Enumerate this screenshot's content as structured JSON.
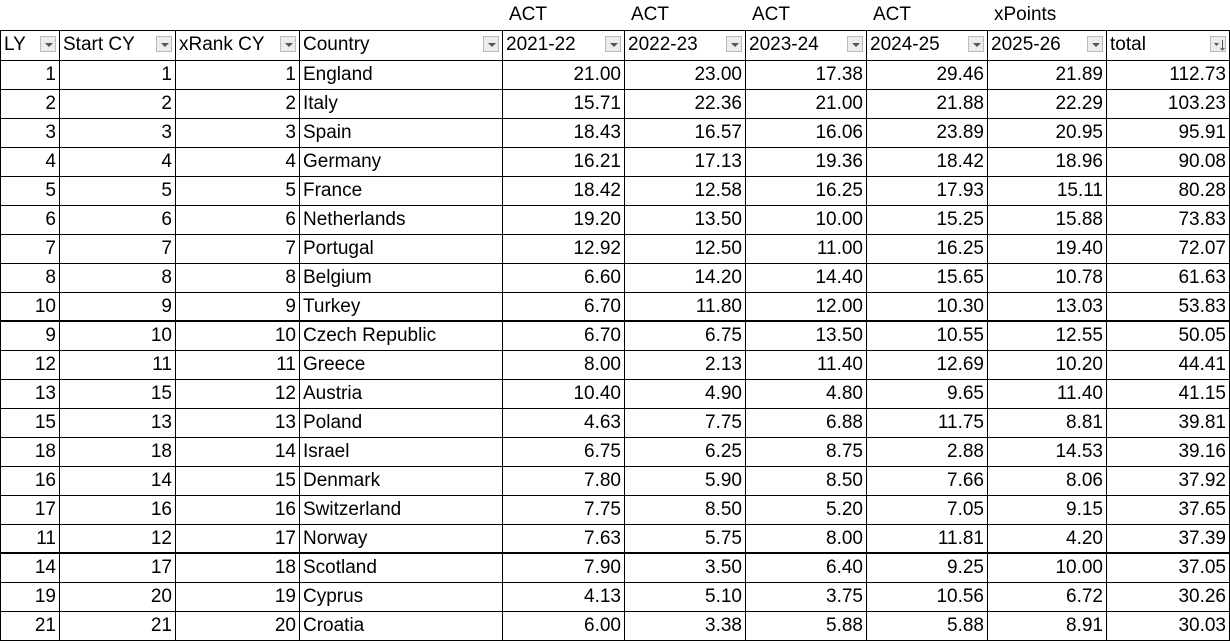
{
  "group_labels": [
    "ACT",
    "ACT",
    "ACT",
    "ACT",
    "xPoints"
  ],
  "columns": [
    "LY",
    "Start CY",
    "xRank CY",
    "Country",
    "2021-22",
    "2022-23",
    "2023-24",
    "2024-25",
    "2025-26",
    "total"
  ],
  "rows": [
    [
      "1",
      "1",
      "1",
      "England",
      "21.00",
      "23.00",
      "17.38",
      "29.46",
      "21.89",
      "112.73"
    ],
    [
      "2",
      "2",
      "2",
      "Italy",
      "15.71",
      "22.36",
      "21.00",
      "21.88",
      "22.29",
      "103.23"
    ],
    [
      "3",
      "3",
      "3",
      "Spain",
      "18.43",
      "16.57",
      "16.06",
      "23.89",
      "20.95",
      "95.91"
    ],
    [
      "4",
      "4",
      "4",
      "Germany",
      "16.21",
      "17.13",
      "19.36",
      "18.42",
      "18.96",
      "90.08"
    ],
    [
      "5",
      "5",
      "5",
      "France",
      "18.42",
      "12.58",
      "16.25",
      "17.93",
      "15.11",
      "80.28"
    ],
    [
      "6",
      "6",
      "6",
      "Netherlands",
      "19.20",
      "13.50",
      "10.00",
      "15.25",
      "15.88",
      "73.83"
    ],
    [
      "7",
      "7",
      "7",
      "Portugal",
      "12.92",
      "12.50",
      "11.00",
      "16.25",
      "19.40",
      "72.07"
    ],
    [
      "8",
      "8",
      "8",
      "Belgium",
      "6.60",
      "14.20",
      "14.40",
      "15.65",
      "10.78",
      "61.63"
    ],
    [
      "10",
      "9",
      "9",
      "Turkey",
      "6.70",
      "11.80",
      "12.00",
      "10.30",
      "13.03",
      "53.83"
    ],
    [
      "9",
      "10",
      "10",
      "Czech Republic",
      "6.70",
      "6.75",
      "13.50",
      "10.55",
      "12.55",
      "50.05"
    ],
    [
      "12",
      "11",
      "11",
      "Greece",
      "8.00",
      "2.13",
      "11.40",
      "12.69",
      "10.20",
      "44.41"
    ],
    [
      "13",
      "15",
      "12",
      "Austria",
      "10.40",
      "4.90",
      "4.80",
      "9.65",
      "11.40",
      "41.15"
    ],
    [
      "15",
      "13",
      "13",
      "Poland",
      "4.63",
      "7.75",
      "6.88",
      "11.75",
      "8.81",
      "39.81"
    ],
    [
      "18",
      "18",
      "14",
      "Israel",
      "6.75",
      "6.25",
      "8.75",
      "2.88",
      "14.53",
      "39.16"
    ],
    [
      "16",
      "14",
      "15",
      "Denmark",
      "7.80",
      "5.90",
      "8.50",
      "7.66",
      "8.06",
      "37.92"
    ],
    [
      "17",
      "16",
      "16",
      "Switzerland",
      "7.75",
      "8.50",
      "5.20",
      "7.05",
      "9.15",
      "37.65"
    ],
    [
      "11",
      "12",
      "17",
      "Norway",
      "7.63",
      "5.75",
      "8.00",
      "11.81",
      "4.20",
      "37.39"
    ],
    [
      "14",
      "17",
      "18",
      "Scotland",
      "7.90",
      "3.50",
      "6.40",
      "9.25",
      "10.00",
      "37.05"
    ],
    [
      "19",
      "20",
      "19",
      "Cyprus",
      "4.13",
      "5.10",
      "3.75",
      "10.56",
      "6.72",
      "30.26"
    ],
    [
      "21",
      "21",
      "20",
      "Croatia",
      "6.00",
      "3.38",
      "5.88",
      "5.88",
      "8.91",
      "30.03"
    ]
  ]
}
